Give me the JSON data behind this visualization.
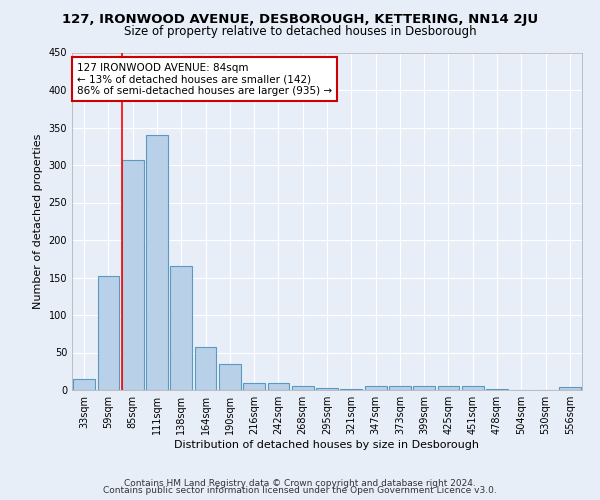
{
  "title": "127, IRONWOOD AVENUE, DESBOROUGH, KETTERING, NN14 2JU",
  "subtitle": "Size of property relative to detached houses in Desborough",
  "xlabel": "Distribution of detached houses by size in Desborough",
  "ylabel": "Number of detached properties",
  "footer1": "Contains HM Land Registry data © Crown copyright and database right 2024.",
  "footer2": "Contains public sector information licensed under the Open Government Licence v3.0.",
  "categories": [
    "33sqm",
    "59sqm",
    "85sqm",
    "111sqm",
    "138sqm",
    "164sqm",
    "190sqm",
    "216sqm",
    "242sqm",
    "268sqm",
    "295sqm",
    "321sqm",
    "347sqm",
    "373sqm",
    "399sqm",
    "425sqm",
    "451sqm",
    "478sqm",
    "504sqm",
    "530sqm",
    "556sqm"
  ],
  "values": [
    15,
    152,
    307,
    340,
    165,
    57,
    35,
    10,
    9,
    6,
    3,
    2,
    5,
    5,
    5,
    5,
    5,
    1,
    0,
    0,
    4
  ],
  "bar_color": "#b8d0e8",
  "bar_edge_color": "#5a9abf",
  "ylim": [
    0,
    450
  ],
  "yticks": [
    0,
    50,
    100,
    150,
    200,
    250,
    300,
    350,
    400,
    450
  ],
  "red_line_bin_index": 2,
  "annotation_text": "127 IRONWOOD AVENUE: 84sqm\n← 13% of detached houses are smaller (142)\n86% of semi-detached houses are larger (935) →",
  "annotation_box_color": "#ffffff",
  "annotation_box_edge_color": "#cc0000",
  "background_color": "#e8eef8",
  "grid_color": "#ffffff",
  "title_fontsize": 9.5,
  "subtitle_fontsize": 8.5,
  "ylabel_fontsize": 8,
  "xlabel_fontsize": 8,
  "tick_fontsize": 7,
  "annotation_fontsize": 7.5,
  "footer_fontsize": 6.5
}
